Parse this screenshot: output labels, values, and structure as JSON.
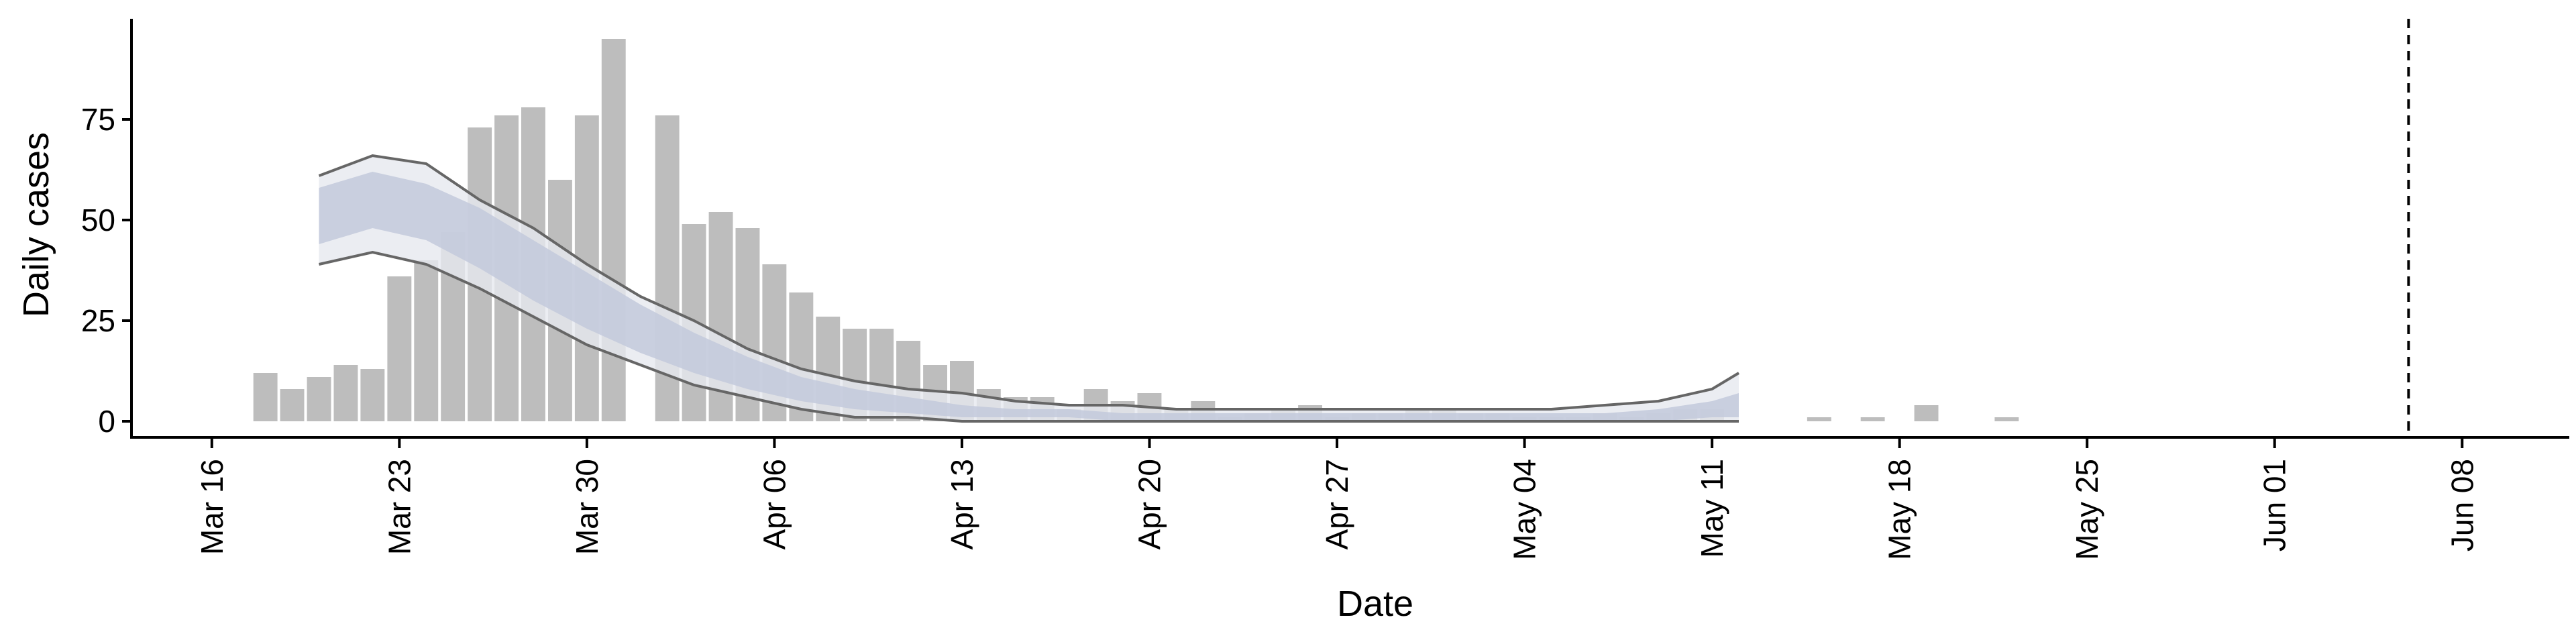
{
  "chart_data": {
    "type": "bar",
    "title": "",
    "xlabel": "Date",
    "ylabel": "Daily cases",
    "ylim": [
      -4,
      100
    ],
    "xlim": [
      "2020-03-13",
      "2020-06-12"
    ],
    "x_tick_labels": [
      "Mar 16",
      "Mar 23",
      "Mar 30",
      "Apr 06",
      "Apr 13",
      "Apr 20",
      "Apr 27",
      "May 04",
      "May 11",
      "May 18",
      "May 25",
      "Jun 01",
      "Jun 08"
    ],
    "x_tick_dates": [
      "2020-03-16",
      "2020-03-23",
      "2020-03-30",
      "2020-04-06",
      "2020-04-13",
      "2020-04-20",
      "2020-04-27",
      "2020-05-04",
      "2020-05-11",
      "2020-05-18",
      "2020-05-25",
      "2020-06-01",
      "2020-06-08"
    ],
    "y_ticks": [
      0,
      25,
      50,
      75
    ],
    "grid": false,
    "legend": "none",
    "colors": {
      "bars": "#bdbdbd",
      "outer_band": "#e6e8ef",
      "inner_band": "#c3c9dc",
      "interval_lines": "#666666",
      "axis": "#000000",
      "vertical_marker": "#000000"
    },
    "vertical_marker": {
      "date": "2020-06-06",
      "style": "dashed"
    },
    "series": [
      {
        "type": "bar",
        "dates": [
          "2020-03-18",
          "2020-03-19",
          "2020-03-20",
          "2020-03-21",
          "2020-03-22",
          "2020-03-23",
          "2020-03-24",
          "2020-03-25",
          "2020-03-26",
          "2020-03-27",
          "2020-03-28",
          "2020-03-29",
          "2020-03-30",
          "2020-03-31",
          "2020-04-01",
          "2020-04-02",
          "2020-04-03",
          "2020-04-04",
          "2020-04-05",
          "2020-04-06",
          "2020-04-07",
          "2020-04-08",
          "2020-04-09",
          "2020-04-10",
          "2020-04-11",
          "2020-04-12",
          "2020-04-13",
          "2020-04-14",
          "2020-04-15",
          "2020-04-16",
          "2020-04-17",
          "2020-04-18",
          "2020-04-19",
          "2020-04-20",
          "2020-04-21",
          "2020-04-22",
          "2020-04-23",
          "2020-04-24",
          "2020-04-25",
          "2020-04-26",
          "2020-04-27",
          "2020-04-28",
          "2020-04-29",
          "2020-04-30",
          "2020-05-01",
          "2020-05-02",
          "2020-05-03",
          "2020-05-04",
          "2020-05-05",
          "2020-05-06",
          "2020-05-07",
          "2020-05-08",
          "2020-05-09",
          "2020-05-10",
          "2020-05-11",
          "2020-05-15",
          "2020-05-17",
          "2020-05-19",
          "2020-05-22"
        ],
        "values": [
          12,
          8,
          11,
          14,
          13,
          36,
          40,
          47,
          73,
          76,
          78,
          60,
          76,
          95,
          0,
          76,
          49,
          52,
          48,
          39,
          32,
          26,
          23,
          23,
          20,
          14,
          15,
          8,
          6,
          6,
          3,
          8,
          5,
          7,
          3,
          5,
          1,
          2,
          3,
          4,
          1,
          2,
          2,
          3,
          3,
          2,
          2,
          1,
          1,
          1,
          2,
          1,
          2,
          3,
          3,
          1,
          1,
          4,
          1
        ]
      },
      {
        "type": "band",
        "dates": [
          "2020-03-20",
          "2020-03-22",
          "2020-03-24",
          "2020-03-26",
          "2020-03-28",
          "2020-03-30",
          "2020-04-01",
          "2020-04-03",
          "2020-04-05",
          "2020-04-07",
          "2020-04-09",
          "2020-04-11",
          "2020-04-13",
          "2020-04-15",
          "2020-04-17",
          "2020-04-19",
          "2020-04-21",
          "2020-04-23",
          "2020-04-25",
          "2020-04-27",
          "2020-04-29",
          "2020-05-01",
          "2020-05-03",
          "2020-05-05",
          "2020-05-07",
          "2020-05-09",
          "2020-05-11",
          "2020-05-12"
        ],
        "dates_note": "",
        "median": [
          52,
          56,
          53,
          46,
          38,
          30,
          23,
          17,
          12,
          8,
          6,
          4,
          3,
          2,
          2,
          1,
          1,
          1,
          1,
          1,
          1,
          1,
          1,
          1,
          1,
          2,
          3,
          4
        ],
        "inner_low": [
          44,
          48,
          45,
          38,
          30,
          23,
          17,
          12,
          8,
          5,
          3,
          2,
          1,
          1,
          1,
          0,
          0,
          0,
          0,
          0,
          0,
          0,
          0,
          0,
          0,
          0,
          1,
          1
        ],
        "inner_high": [
          58,
          62,
          59,
          53,
          45,
          37,
          29,
          22,
          16,
          11,
          8,
          6,
          4,
          3,
          3,
          2,
          2,
          2,
          2,
          2,
          2,
          2,
          2,
          2,
          2,
          3,
          5,
          7
        ],
        "outer_low": [
          39,
          42,
          39,
          33,
          26,
          19,
          14,
          9,
          6,
          3,
          1,
          1,
          0,
          0,
          0,
          0,
          0,
          0,
          0,
          0,
          0,
          0,
          0,
          0,
          0,
          0,
          0,
          0
        ],
        "outer_high": [
          61,
          66,
          64,
          55,
          48,
          39,
          31,
          25,
          18,
          13,
          10,
          8,
          7,
          5,
          4,
          4,
          3,
          3,
          3,
          3,
          3,
          3,
          3,
          3,
          4,
          5,
          8,
          12
        ]
      }
    ]
  }
}
